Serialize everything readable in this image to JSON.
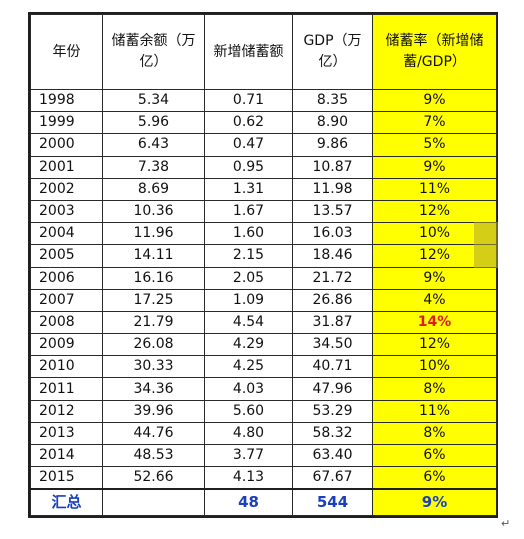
{
  "table": {
    "headers": {
      "year": "年份",
      "savings_balance": "储蓄余额（万亿）",
      "new_savings": "新增储蓄额",
      "gdp": "GDP（万亿）",
      "savings_rate": "储蓄率（新增储蓄/GDP）"
    },
    "rows": [
      {
        "year": "1998",
        "balance": "5.34",
        "new": "0.71",
        "gdp": "8.35",
        "rate": "9%"
      },
      {
        "year": "1999",
        "balance": "5.96",
        "new": "0.62",
        "gdp": "8.90",
        "rate": "7%"
      },
      {
        "year": "2000",
        "balance": "6.43",
        "new": "0.47",
        "gdp": "9.86",
        "rate": "5%"
      },
      {
        "year": "2001",
        "balance": "7.38",
        "new": "0.95",
        "gdp": "10.87",
        "rate": "9%"
      },
      {
        "year": "2002",
        "balance": "8.69",
        "new": "1.31",
        "gdp": "11.98",
        "rate": "11%"
      },
      {
        "year": "2003",
        "balance": "10.36",
        "new": "1.67",
        "gdp": "13.57",
        "rate": "12%"
      },
      {
        "year": "2004",
        "balance": "11.96",
        "new": "1.60",
        "gdp": "16.03",
        "rate": "10%"
      },
      {
        "year": "2005",
        "balance": "14.11",
        "new": "2.15",
        "gdp": "18.46",
        "rate": "12%"
      },
      {
        "year": "2006",
        "balance": "16.16",
        "new": "2.05",
        "gdp": "21.72",
        "rate": "9%"
      },
      {
        "year": "2007",
        "balance": "17.25",
        "new": "1.09",
        "gdp": "26.86",
        "rate": "4%"
      },
      {
        "year": "2008",
        "balance": "21.79",
        "new": "4.54",
        "gdp": "31.87",
        "rate": "14%",
        "highlight": true
      },
      {
        "year": "2009",
        "balance": "26.08",
        "new": "4.29",
        "gdp": "34.50",
        "rate": "12%"
      },
      {
        "year": "2010",
        "balance": "30.33",
        "new": "4.25",
        "gdp": "40.71",
        "rate": "10%"
      },
      {
        "year": "2011",
        "balance": "34.36",
        "new": "4.03",
        "gdp": "47.96",
        "rate": "8%"
      },
      {
        "year": "2012",
        "balance": "39.96",
        "new": "5.60",
        "gdp": "53.29",
        "rate": "11%"
      },
      {
        "year": "2013",
        "balance": "44.76",
        "new": "4.80",
        "gdp": "58.32",
        "rate": "8%"
      },
      {
        "year": "2014",
        "balance": "48.53",
        "new": "3.77",
        "gdp": "63.40",
        "rate": "6%"
      },
      {
        "year": "2015",
        "balance": "52.66",
        "new": "4.13",
        "gdp": "67.67",
        "rate": "6%"
      }
    ],
    "total": {
      "label": "汇总",
      "new": "48",
      "gdp": "544",
      "rate": "9%"
    }
  },
  "return_mark": "↵",
  "colors": {
    "rate_bg": "#ffff00",
    "highlight": "#e01b1b",
    "total_text": "#1a3fbf"
  }
}
